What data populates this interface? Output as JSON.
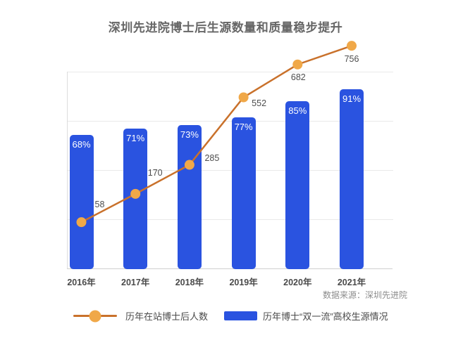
{
  "title": "深圳先进院博士后生源数量和质量稳步提升",
  "source_note": "数据来源：深圳先进院",
  "legend": [
    {
      "label": "历年在站博士后人数",
      "type": "line",
      "color": "#C9712B",
      "marker_color": "#F0A848"
    },
    {
      "label": "历年博士“双一流”高校生源情况",
      "type": "bar",
      "color": "#2A53E0"
    }
  ],
  "colors": {
    "bar": "#2A53E0",
    "line": "#C9712B",
    "marker": "#F0A848",
    "grid": "#e9e9e9",
    "axis_text": "#4a4a4a",
    "title_text": "#666666",
    "source_text": "#8c8c8c",
    "bar_label_text": "#ffffff"
  },
  "chart_data": {
    "type": "bar+line",
    "title": "深圳先进院博士后生源数量和质量稳步提升",
    "categories": [
      "2016年",
      "2017年",
      "2018年",
      "2019年",
      "2020年",
      "2021年"
    ],
    "series": [
      {
        "name": "历年博士“双一流”高校生源情况",
        "type": "bar",
        "values": [
          68,
          71,
          73,
          77,
          85,
          91
        ],
        "labels": [
          "68%",
          "71%",
          "73%",
          "77%",
          "85%",
          "91%"
        ],
        "unit": "%",
        "ylim": [
          0,
          100
        ],
        "color": "#2A53E0"
      },
      {
        "name": "历年在站博士后人数",
        "type": "line",
        "values": [
          58,
          170,
          285,
          552,
          682,
          756
        ],
        "labels": [
          "58",
          "170",
          "285",
          "552",
          "682",
          "756"
        ],
        "color": "#C9712B",
        "marker_color": "#F0A848"
      }
    ],
    "grid": true,
    "y_axis_tick_labels_shown": false,
    "legend_position": "bottom",
    "source": "数据来源：深圳先进院"
  }
}
